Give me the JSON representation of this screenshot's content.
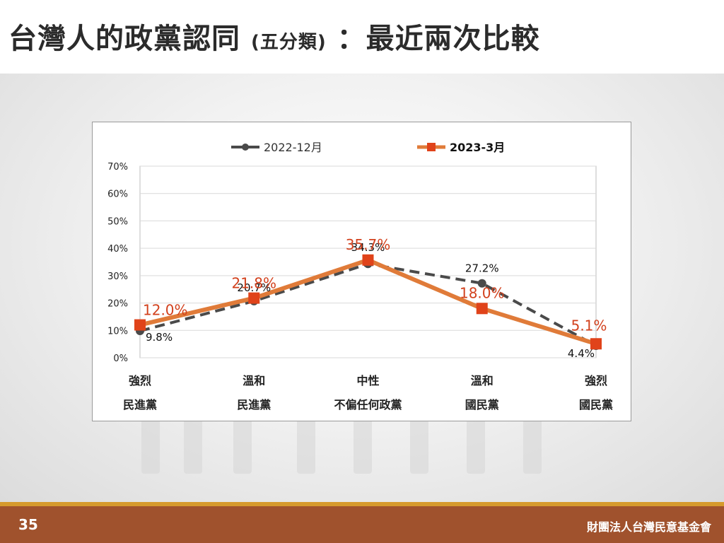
{
  "slide": {
    "title_main": "台灣人的政黨認同",
    "title_small": "(五分類)",
    "title_tail": "：最近兩次比較",
    "page_number": "35",
    "organization": "財團法人台灣民意基金會"
  },
  "colors": {
    "series_2022": "#4a4a4a",
    "series_2023": "#e07b39",
    "marker_2023": "#e0431a",
    "label_2023": "#d2411d",
    "footer": "#a0522d",
    "footer_line": "#d69a2d"
  },
  "chart_data": {
    "type": "line",
    "categories": [
      [
        "強烈",
        "民進黨"
      ],
      [
        "溫和",
        "民進黨"
      ],
      [
        "中性",
        "不偏任何政黨"
      ],
      [
        "溫和",
        "國民黨"
      ],
      [
        "強烈",
        "國民黨"
      ]
    ],
    "y_ticks": [
      "0%",
      "10%",
      "20%",
      "30%",
      "40%",
      "50%",
      "60%",
      "70%"
    ],
    "ylim": [
      0,
      70
    ],
    "grid": true,
    "legend_position": "top",
    "series": [
      {
        "name": "2022-12月",
        "values": [
          9.8,
          20.7,
          34.3,
          27.2,
          4.4
        ],
        "labels": [
          "9.8%",
          "20.7%",
          "34.3%",
          "27.2%",
          "4.4%"
        ],
        "style": "dashed",
        "marker": "circle"
      },
      {
        "name": "2023-3月",
        "values": [
          12.0,
          21.8,
          35.7,
          18.0,
          5.1
        ],
        "labels": [
          "12.0%",
          "21.8%",
          "35.7%",
          "18.0%",
          "5.1%"
        ],
        "style": "solid",
        "marker": "square"
      }
    ]
  }
}
